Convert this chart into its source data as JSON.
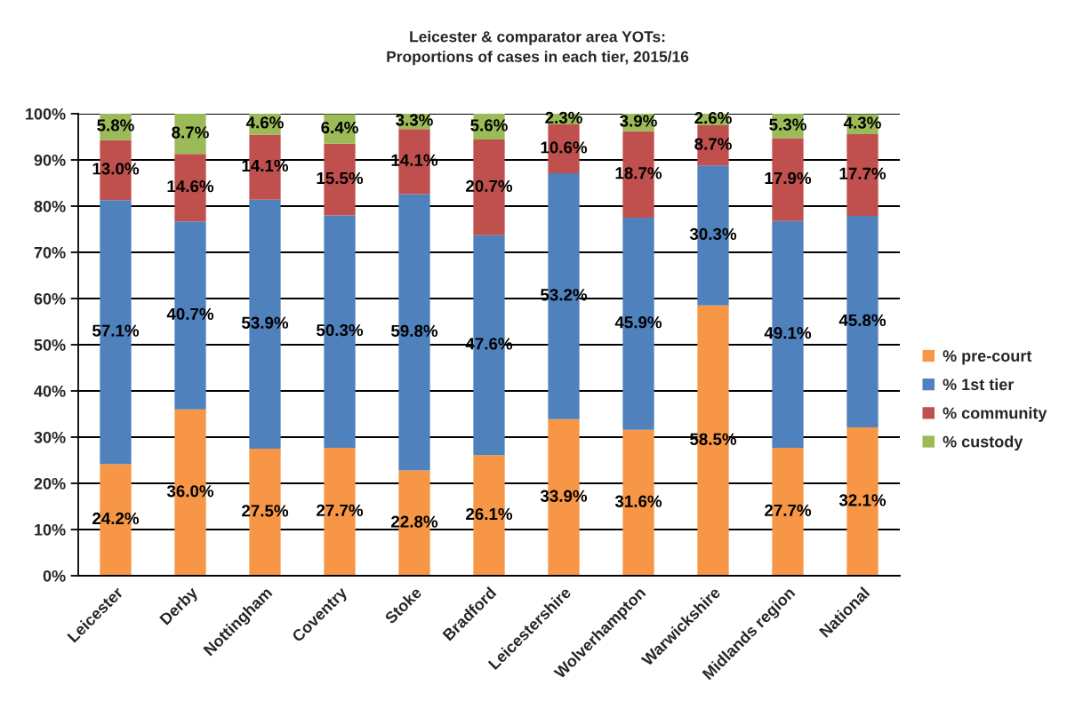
{
  "chart_data": {
    "type": "bar",
    "title": "Leicester & comparator area YOTs:\nProportions of cases in each tier, 2015/16",
    "categories": [
      "Leicester",
      "Derby",
      "Nottingham",
      "Coventry",
      "Stoke",
      "Bradford",
      "Leicestershire",
      "Wolverhampton",
      "Warwickshire",
      "Midlands region",
      "National"
    ],
    "stacked": true,
    "series": [
      {
        "name": "% pre-court",
        "color": "#f79646",
        "values": [
          24.2,
          36.0,
          27.5,
          27.7,
          22.8,
          26.1,
          33.9,
          31.6,
          58.5,
          27.7,
          32.1
        ],
        "value_labels": [
          "24.2%",
          "36.0%",
          "27.5%",
          "27.7%",
          "22.8%",
          "26.1%",
          "33.9%",
          "31.6%",
          "58.5%",
          "27.7%",
          "32.1%"
        ]
      },
      {
        "name": "% 1st tier",
        "color": "#4f81bd",
        "values": [
          57.1,
          40.7,
          53.9,
          50.3,
          59.8,
          47.6,
          53.2,
          45.9,
          30.3,
          49.1,
          45.8
        ],
        "value_labels": [
          "57.1%",
          "40.7%",
          "53.9%",
          "50.3%",
          "59.8%",
          "47.6%",
          "53.2%",
          "45.9%",
          "30.3%",
          "49.1%",
          "45.8%"
        ]
      },
      {
        "name": "% community",
        "color": "#c0504d",
        "values": [
          13.0,
          14.6,
          14.1,
          15.5,
          14.1,
          20.7,
          10.6,
          18.7,
          8.7,
          17.9,
          17.7
        ],
        "value_labels": [
          "13.0%",
          "14.6%",
          "14.1%",
          "15.5%",
          "14.1%",
          "20.7%",
          "10.6%",
          "18.7%",
          "8.7%",
          "17.9%",
          "17.7%"
        ]
      },
      {
        "name": "% custody",
        "color": "#9bbb59",
        "values": [
          5.8,
          8.7,
          4.6,
          6.4,
          3.3,
          5.6,
          2.3,
          3.9,
          2.6,
          5.3,
          4.3
        ],
        "value_labels": [
          "5.8%",
          "8.7%",
          "4.6%",
          "6.4%",
          "3.3%",
          "5.6%",
          "2.3%",
          "3.9%",
          "2.6%",
          "5.3%",
          "4.3%"
        ]
      }
    ],
    "ylim": [
      0,
      100
    ],
    "yticks": [
      {
        "value": 0,
        "label": "0%"
      },
      {
        "value": 10,
        "label": "10%"
      },
      {
        "value": 20,
        "label": "20%"
      },
      {
        "value": 30,
        "label": "30%"
      },
      {
        "value": 40,
        "label": "40%"
      },
      {
        "value": 50,
        "label": "50%"
      },
      {
        "value": 60,
        "label": "60%"
      },
      {
        "value": 70,
        "label": "70%"
      },
      {
        "value": 80,
        "label": "80%"
      },
      {
        "value": 90,
        "label": "90%"
      },
      {
        "value": 100,
        "label": "100%"
      }
    ],
    "grid": "y",
    "legend": "right"
  }
}
